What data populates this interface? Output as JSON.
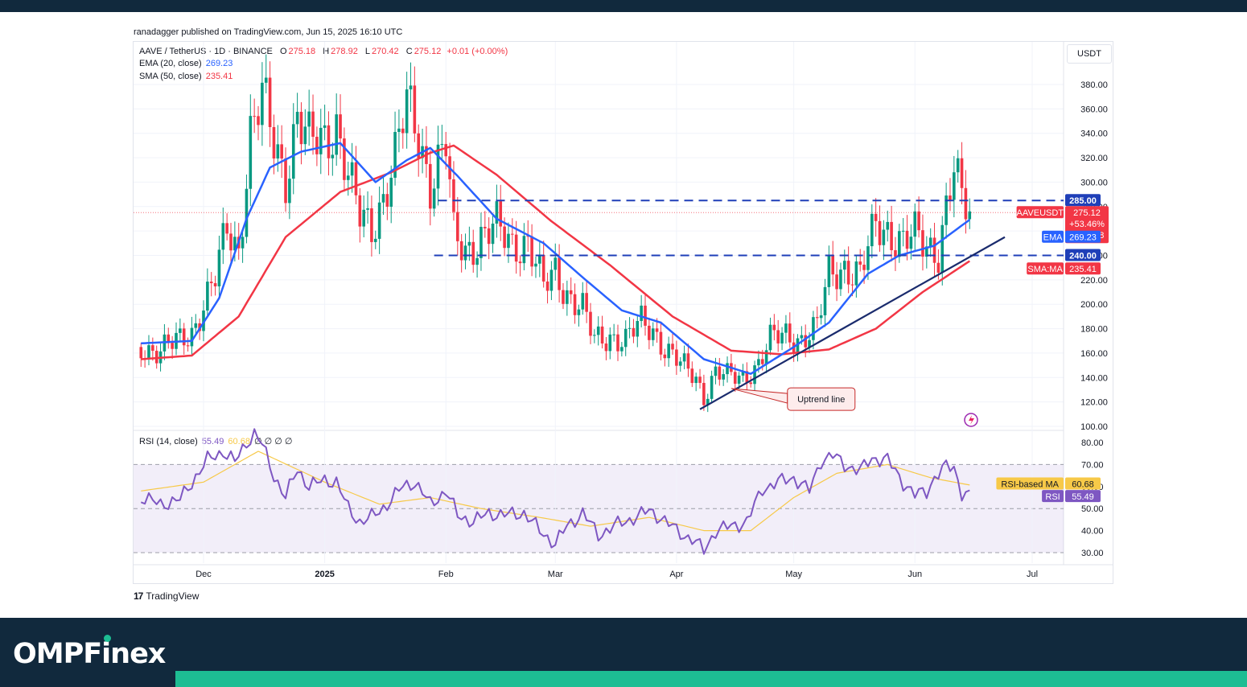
{
  "publisher": "ranadagger published on TradingView.com, Jun 15, 2025 16:10 UTC",
  "tradingview_label": "TradingView",
  "brand": {
    "text_before": "OMPF",
    "text_dot": "i",
    "text_after": "nex"
  },
  "colors": {
    "up": "#089981",
    "down": "#f23645",
    "ema": "#2962ff",
    "sma": "#f23645",
    "rsi": "#7e57c2",
    "rsi_ma": "#f7c948",
    "level": "#1f3fb8",
    "trendline": "#1a2b6d",
    "header_bg": "#11293d",
    "accent": "#1dbd93"
  },
  "legend": {
    "symbol": "AAVE / TetherUS · 1D · BINANCE",
    "o_label": "O",
    "o": "275.18",
    "h_label": "H",
    "h": "278.92",
    "l_label": "L",
    "l": "270.42",
    "c_label": "C",
    "c": "275.12",
    "change": "+0.01 (+0.00%)",
    "ema_label": "EMA (20, close)",
    "ema_value": "269.23",
    "sma_label": "SMA (50, close)",
    "sma_value": "235.41",
    "rsi_label": "RSI (14, close)",
    "rsi_value": "55.49",
    "rsi_ma_value": "60.68",
    "rsi_extra": "∅ ∅ ∅ ∅"
  },
  "currency": "USDT",
  "price_labels": {
    "level_285": "285.00",
    "last": "275.12",
    "change_pct": "+53.46%",
    "countdown": "07:49:58",
    "symbol_tag": "AAVEUSDT",
    "ema_tag": "EMA",
    "ema_val": "269.23",
    "level_240": "240.00",
    "sma_tag": "SMA:MA",
    "sma_val": "235.41",
    "rsi_ma_tag": "RSI-based MA",
    "rsi_ma_val": "60.68",
    "rsi_tag": "RSI",
    "rsi_val": "55.49"
  },
  "annotation": "Uptrend line",
  "chart_data": {
    "type": "candlestick",
    "symbol": "AAVEUSDT",
    "interval": "1D",
    "x_ticks": [
      "Dec",
      "2025",
      "Feb",
      "Mar",
      "Apr",
      "May",
      "Jun",
      "Jul"
    ],
    "x_tick_dates": [
      "2024-12-01",
      "2025-01-01",
      "2025-02-01",
      "2025-03-01",
      "2025-04-01",
      "2025-05-01",
      "2025-06-01",
      "2025-07-01"
    ],
    "price_axis": {
      "ylim": [
        100,
        390
      ],
      "ticks": [
        "100.00",
        "120.00",
        "140.00",
        "160.00",
        "180.00",
        "200.00",
        "220.00",
        "240.00",
        "260.00",
        "280.00",
        "300.00",
        "320.00",
        "340.00",
        "360.00",
        "380.00"
      ]
    },
    "rsi_axis": {
      "ylim": [
        27,
        85
      ],
      "ticks": [
        "30.00",
        "40.00",
        "50.00",
        "60.00",
        "70.00",
        "80.00"
      ],
      "band": [
        30,
        70
      ],
      "midline": 50
    },
    "horizontal_levels": [
      285,
      240
    ],
    "trendline": {
      "from": {
        "date": "2025-04-07",
        "price": 114
      },
      "to": {
        "date": "2025-06-24",
        "price": 255
      },
      "label": "Uptrend line"
    },
    "close_anchors": [
      [
        "2024-11-15",
        165
      ],
      [
        "2024-11-20",
        162
      ],
      [
        "2024-11-25",
        170
      ],
      [
        "2024-11-28",
        178
      ],
      [
        "2024-12-01",
        200
      ],
      [
        "2024-12-04",
        220
      ],
      [
        "2024-12-07",
        262
      ],
      [
        "2024-12-10",
        245
      ],
      [
        "2024-12-13",
        340
      ],
      [
        "2024-12-16",
        368
      ],
      [
        "2024-12-19",
        332
      ],
      [
        "2024-12-22",
        305
      ],
      [
        "2024-12-25",
        355
      ],
      [
        "2024-12-28",
        330
      ],
      [
        "2025-01-01",
        335
      ],
      [
        "2025-01-04",
        350
      ],
      [
        "2025-01-07",
        305
      ],
      [
        "2025-01-10",
        270
      ],
      [
        "2025-01-13",
        262
      ],
      [
        "2025-01-16",
        290
      ],
      [
        "2025-01-19",
        320
      ],
      [
        "2025-01-22",
        362
      ],
      [
        "2025-01-25",
        340
      ],
      [
        "2025-01-28",
        300
      ],
      [
        "2025-02-01",
        330
      ],
      [
        "2025-02-03",
        255
      ],
      [
        "2025-02-06",
        245
      ],
      [
        "2025-02-10",
        255
      ],
      [
        "2025-02-14",
        262
      ],
      [
        "2025-02-18",
        250
      ],
      [
        "2025-02-22",
        252
      ],
      [
        "2025-02-26",
        212
      ],
      [
        "2025-03-01",
        228
      ],
      [
        "2025-03-04",
        210
      ],
      [
        "2025-03-08",
        195
      ],
      [
        "2025-03-11",
        170
      ],
      [
        "2025-03-15",
        175
      ],
      [
        "2025-03-19",
        170
      ],
      [
        "2025-03-23",
        185
      ],
      [
        "2025-03-26",
        180
      ],
      [
        "2025-03-29",
        165
      ],
      [
        "2025-04-02",
        150
      ],
      [
        "2025-04-06",
        140
      ],
      [
        "2025-04-08",
        125
      ],
      [
        "2025-04-11",
        145
      ],
      [
        "2025-04-14",
        140
      ],
      [
        "2025-04-18",
        140
      ],
      [
        "2025-04-22",
        152
      ],
      [
        "2025-04-25",
        170
      ],
      [
        "2025-04-29",
        175
      ],
      [
        "2025-05-03",
        172
      ],
      [
        "2025-05-07",
        180
      ],
      [
        "2025-05-10",
        225
      ],
      [
        "2025-05-14",
        232
      ],
      [
        "2025-05-18",
        222
      ],
      [
        "2025-05-22",
        265
      ],
      [
        "2025-05-25",
        262
      ],
      [
        "2025-05-29",
        250
      ],
      [
        "2025-06-01",
        255
      ],
      [
        "2025-06-04",
        248
      ],
      [
        "2025-06-07",
        245
      ],
      [
        "2025-06-09",
        280
      ],
      [
        "2025-06-11",
        310
      ],
      [
        "2025-06-13",
        282
      ],
      [
        "2025-06-15",
        275.12
      ]
    ],
    "ema20_anchors": [
      [
        "2024-11-15",
        168
      ],
      [
        "2024-11-28",
        170
      ],
      [
        "2024-12-05",
        205
      ],
      [
        "2024-12-12",
        270
      ],
      [
        "2024-12-18",
        312
      ],
      [
        "2024-12-26",
        325
      ],
      [
        "2025-01-05",
        332
      ],
      [
        "2025-01-14",
        300
      ],
      [
        "2025-01-22",
        318
      ],
      [
        "2025-01-28",
        328
      ],
      [
        "2025-02-04",
        305
      ],
      [
        "2025-02-14",
        270
      ],
      [
        "2025-02-26",
        250
      ],
      [
        "2025-03-08",
        222
      ],
      [
        "2025-03-18",
        195
      ],
      [
        "2025-03-28",
        185
      ],
      [
        "2025-04-08",
        155
      ],
      [
        "2025-04-20",
        143
      ],
      [
        "2025-05-01",
        165
      ],
      [
        "2025-05-10",
        185
      ],
      [
        "2025-05-20",
        225
      ],
      [
        "2025-05-28",
        240
      ],
      [
        "2025-06-06",
        248
      ],
      [
        "2025-06-15",
        269.23
      ]
    ],
    "sma50_anchors": [
      [
        "2024-11-15",
        155
      ],
      [
        "2024-11-28",
        158
      ],
      [
        "2024-12-10",
        190
      ],
      [
        "2024-12-22",
        255
      ],
      [
        "2025-01-05",
        292
      ],
      [
        "2025-01-18",
        308
      ],
      [
        "2025-01-28",
        324
      ],
      [
        "2025-02-03",
        330
      ],
      [
        "2025-02-14",
        306
      ],
      [
        "2025-02-28",
        268
      ],
      [
        "2025-03-15",
        232
      ],
      [
        "2025-03-31",
        190
      ],
      [
        "2025-04-15",
        162
      ],
      [
        "2025-04-28",
        159
      ],
      [
        "2025-05-10",
        163
      ],
      [
        "2025-05-22",
        180
      ],
      [
        "2025-06-03",
        210
      ],
      [
        "2025-06-15",
        235.41
      ]
    ],
    "rsi_anchors": [
      [
        "2024-11-15",
        55
      ],
      [
        "2024-11-20",
        52
      ],
      [
        "2024-11-25",
        54
      ],
      [
        "2024-11-28",
        62
      ],
      [
        "2024-12-02",
        72
      ],
      [
        "2024-12-06",
        76
      ],
      [
        "2024-12-09",
        71
      ],
      [
        "2024-12-12",
        80
      ],
      [
        "2024-12-14",
        84
      ],
      [
        "2024-12-16",
        79
      ],
      [
        "2024-12-19",
        65
      ],
      [
        "2024-12-22",
        55
      ],
      [
        "2024-12-25",
        68
      ],
      [
        "2024-12-28",
        60
      ],
      [
        "2025-01-01",
        63
      ],
      [
        "2025-01-04",
        62
      ],
      [
        "2025-01-07",
        50
      ],
      [
        "2025-01-10",
        44
      ],
      [
        "2025-01-13",
        46
      ],
      [
        "2025-01-17",
        52
      ],
      [
        "2025-01-21",
        60
      ],
      [
        "2025-01-24",
        62
      ],
      [
        "2025-01-28",
        52
      ],
      [
        "2025-02-01",
        58
      ],
      [
        "2025-02-04",
        47
      ],
      [
        "2025-02-08",
        44
      ],
      [
        "2025-02-12",
        48
      ],
      [
        "2025-02-16",
        47
      ],
      [
        "2025-02-21",
        48
      ],
      [
        "2025-02-25",
        40
      ],
      [
        "2025-03-01",
        34
      ],
      [
        "2025-03-04",
        42
      ],
      [
        "2025-03-08",
        48
      ],
      [
        "2025-03-12",
        38
      ],
      [
        "2025-03-16",
        42
      ],
      [
        "2025-03-20",
        45
      ],
      [
        "2025-03-25",
        49
      ],
      [
        "2025-03-28",
        46
      ],
      [
        "2025-04-01",
        40
      ],
      [
        "2025-04-05",
        36
      ],
      [
        "2025-04-08",
        31
      ],
      [
        "2025-04-11",
        40
      ],
      [
        "2025-04-15",
        42
      ],
      [
        "2025-04-19",
        44
      ],
      [
        "2025-04-23",
        59
      ],
      [
        "2025-04-27",
        62
      ],
      [
        "2025-05-01",
        64
      ],
      [
        "2025-05-05",
        58
      ],
      [
        "2025-05-08",
        72
      ],
      [
        "2025-05-11",
        74
      ],
      [
        "2025-05-14",
        70
      ],
      [
        "2025-05-18",
        67
      ],
      [
        "2025-05-21",
        73
      ],
      [
        "2025-05-25",
        72
      ],
      [
        "2025-05-29",
        62
      ],
      [
        "2025-06-01",
        56
      ],
      [
        "2025-06-04",
        58
      ],
      [
        "2025-06-06",
        64
      ],
      [
        "2025-06-09",
        69
      ],
      [
        "2025-06-11",
        69
      ],
      [
        "2025-06-13",
        57
      ],
      [
        "2025-06-15",
        55.49
      ]
    ],
    "rsi_ma_anchors": [
      [
        "2024-11-15",
        58
      ],
      [
        "2024-12-01",
        62
      ],
      [
        "2024-12-15",
        76
      ],
      [
        "2025-01-01",
        62
      ],
      [
        "2025-01-15",
        52
      ],
      [
        "2025-01-28",
        55
      ],
      [
        "2025-02-10",
        50
      ],
      [
        "2025-02-25",
        46
      ],
      [
        "2025-03-10",
        42
      ],
      [
        "2025-03-25",
        46
      ],
      [
        "2025-04-08",
        40
      ],
      [
        "2025-04-20",
        40
      ],
      [
        "2025-05-01",
        55
      ],
      [
        "2025-05-12",
        66
      ],
      [
        "2025-05-25",
        70
      ],
      [
        "2025-06-05",
        64
      ],
      [
        "2025-06-15",
        60.68
      ]
    ]
  }
}
